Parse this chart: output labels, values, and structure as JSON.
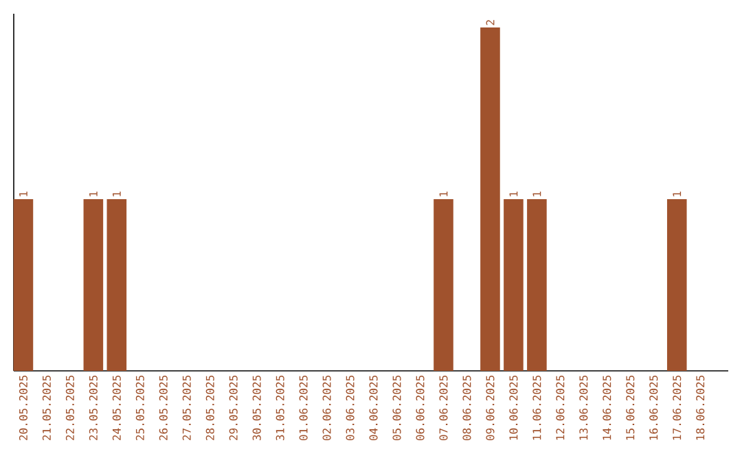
{
  "chart_data": {
    "type": "bar",
    "categories": [
      "20.05.2025",
      "21.05.2025",
      "22.05.2025",
      "23.05.2025",
      "24.05.2025",
      "25.05.2025",
      "26.05.2025",
      "27.05.2025",
      "28.05.2025",
      "29.05.2025",
      "30.05.2025",
      "31.05.2025",
      "01.06.2025",
      "02.06.2025",
      "03.06.2025",
      "04.06.2025",
      "05.06.2025",
      "06.06.2025",
      "07.06.2025",
      "08.06.2025",
      "09.06.2025",
      "10.06.2025",
      "11.06.2025",
      "12.06.2025",
      "13.06.2025",
      "14.06.2025",
      "15.06.2025",
      "16.06.2025",
      "17.06.2025",
      "18.06.2025"
    ],
    "values": [
      1,
      0,
      0,
      1,
      1,
      0,
      0,
      0,
      0,
      0,
      0,
      0,
      0,
      0,
      0,
      0,
      0,
      0,
      1,
      0,
      2,
      1,
      1,
      0,
      0,
      0,
      0,
      0,
      1,
      0
    ],
    "value_labels": [
      "1",
      null,
      null,
      "1",
      "1",
      null,
      null,
      null,
      null,
      null,
      null,
      null,
      null,
      null,
      null,
      null,
      null,
      null,
      "1",
      null,
      "2",
      "1",
      "1",
      null,
      null,
      null,
      null,
      null,
      "1",
      null
    ],
    "color": "#a0522d",
    "ylim": [
      0,
      2.08
    ],
    "tick_labels": "x",
    "grid": false
  }
}
